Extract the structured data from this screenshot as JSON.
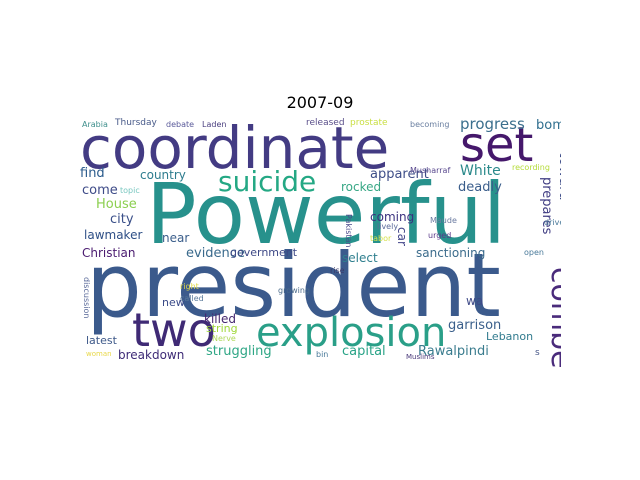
{
  "title": "2007-09",
  "words": {
    "powerful": {
      "text": "Powerful",
      "color": "#27918c"
    },
    "president": {
      "text": "president",
      "color": "#3b5a8c"
    },
    "coordinate": {
      "text": "coordinate",
      "color": "#433b83"
    },
    "set": {
      "text": "set",
      "color": "#45186b"
    },
    "two": {
      "text": "two",
      "color": "#3f2a75"
    },
    "explosion": {
      "text": "explosion",
      "color": "#2a9f88"
    },
    "suicide": {
      "text": "suicide",
      "color": "#24a884"
    },
    "comber": {
      "text": "comber",
      "color": "#4a2b7b"
    },
    "progress": {
      "text": "progress",
      "color": "#3b6f8d"
    },
    "bomb": {
      "text": "bomb",
      "color": "#2e6e8e"
    },
    "toward": {
      "text": "toward",
      "color": "#3d4c88"
    },
    "prepares": {
      "text": "prepares",
      "color": "#423f84"
    },
    "White": {
      "text": "White",
      "color": "#2b8a8b"
    },
    "apparent": {
      "text": "apparent",
      "color": "#3e4e88"
    },
    "rocked": {
      "text": "rocked",
      "color": "#37a785"
    },
    "deadly": {
      "text": "deadly",
      "color": "#3a5d8b"
    },
    "country": {
      "text": "country",
      "color": "#2d7c8e"
    },
    "find": {
      "text": "find",
      "color": "#2a5b8c"
    },
    "come": {
      "text": "come",
      "color": "#3e4b88"
    },
    "House": {
      "text": "House",
      "color": "#8bcf4f"
    },
    "city": {
      "text": "city",
      "color": "#3a4f89"
    },
    "lawmaker": {
      "text": "lawmaker",
      "color": "#2e4f86"
    },
    "near": {
      "text": "near",
      "color": "#3b5e8b"
    },
    "coming": {
      "text": "coming",
      "color": "#3a317f"
    },
    "select": {
      "text": "select",
      "color": "#2f7f8e"
    },
    "car": {
      "text": "car",
      "color": "#414488"
    },
    "sanctioning": {
      "text": "sanctioning",
      "color": "#3c6c8c"
    },
    "Christian": {
      "text": "Christian",
      "color": "#4a1b70"
    },
    "evidence": {
      "text": "evidence",
      "color": "#3a6a8c"
    },
    "government": {
      "text": "government",
      "color": "#3d4886"
    },
    "new": {
      "text": "new",
      "color": "#3a4a88"
    },
    "killed": {
      "text": "killed",
      "color": "#45276f"
    },
    "string": {
      "text": "string",
      "color": "#9fd838"
    },
    "wa": {
      "text": "wa",
      "color": "#3e4a88"
    },
    "garrison": {
      "text": "garrison",
      "color": "#3a5f8b"
    },
    "Lebanon": {
      "text": "Lebanon",
      "color": "#317b8e"
    },
    "latest": {
      "text": "latest",
      "color": "#3d5889"
    },
    "breakdown": {
      "text": "breakdown",
      "color": "#3d2a76"
    },
    "struggling": {
      "text": "struggling",
      "color": "#2ea685"
    },
    "capital": {
      "text": "capital",
      "color": "#29a387"
    },
    "Rawalpindi": {
      "text": "Rawalpindi",
      "color": "#3a7c8e"
    },
    "Arabia": {
      "text": "Arabia",
      "color": "#3f8f8c"
    },
    "Thursday": {
      "text": "Thursday",
      "color": "#485a89"
    },
    "debate": {
      "text": "debate",
      "color": "#5a5a9a"
    },
    "Laden": {
      "text": "Laden",
      "color": "#4a3f7f"
    },
    "released": {
      "text": "released",
      "color": "#5a4f8a"
    },
    "prostate": {
      "text": "prostate",
      "color": "#c9df42"
    },
    "becoming": {
      "text": "becoming",
      "color": "#6a7fa0"
    },
    "recording": {
      "text": "recording",
      "color": "#b5dc3a"
    },
    "topic": {
      "text": "topic",
      "color": "#79c7c0"
    },
    "Musharraf": {
      "text": "Musharraf",
      "color": "#5a4a8f"
    },
    "Pakistan": {
      "text": "Pakistan",
      "color": "#4a4a8a"
    },
    "lively": {
      "text": "lively",
      "color": "#5a6a9a"
    },
    "Maude": {
      "text": "Maude",
      "color": "#6a7aa0"
    },
    "urged": {
      "text": "urged",
      "color": "#5a3a8a"
    },
    "tabor": {
      "text": "tabor",
      "color": "#d5e24a"
    },
    "open": {
      "text": "open",
      "color": "#4a7a9a"
    },
    "drive": {
      "text": "drive",
      "color": "#4a7a9a"
    },
    "rise": {
      "text": "rise",
      "color": "#3a3a6a"
    },
    "right": {
      "text": "right",
      "color": "#e0d84a"
    },
    "growing": {
      "text": "growing",
      "color": "#4a6a8a"
    },
    "discussion": {
      "text": "discussion",
      "color": "#5a6a9a"
    },
    "called": {
      "text": "called",
      "color": "#5a7a9a"
    },
    "Nerve": {
      "text": "Nerve",
      "color": "#b0d85a"
    },
    "woman": {
      "text": "woman",
      "color": "#e8d84a"
    },
    "bin": {
      "text": "bin",
      "color": "#4a7a9a"
    },
    "Muslims": {
      "text": "Muslims",
      "color": "#4a3a7a"
    },
    "s": {
      "text": "s",
      "color": "#4a5a8a"
    }
  }
}
